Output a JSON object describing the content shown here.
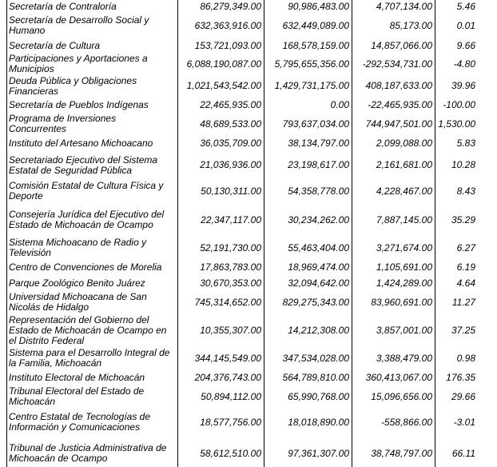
{
  "rows": [
    {
      "name": "Secretaría de Contraloría",
      "v1": "86,279,349.00",
      "v2": "90,986,483.00",
      "diff": "4,707,134.00",
      "pct": "5.46",
      "h": 16
    },
    {
      "name": "Secretaría de Desarrollo Social y Humano",
      "v1": "632,363,916.00",
      "v2": "632,449,089.00",
      "diff": "85,173.00",
      "pct": "0.01",
      "h": 32
    },
    {
      "name": "Secretaría de Cultura",
      "v1": "153,721,093.00",
      "v2": "168,578,159.00",
      "diff": "14,857,066.00",
      "pct": "9.66",
      "h": 18
    },
    {
      "name": "Participaciones y Aportaciones a Municipios",
      "v1": "6,088,190,087.00",
      "v2": "5,795,655,356.00",
      "diff": "-292,534,731.00",
      "pct": "-4.80",
      "h": 28
    },
    {
      "name": "Deuda Pública y Obligaciones Financieras",
      "v1": "1,021,543,542.00",
      "v2": "1,429,731,175.00",
      "diff": "408,187,633.00",
      "pct": "39.96",
      "h": 27
    },
    {
      "name": "Secretaría de Pueblos Indígenas",
      "v1": "22,465,935.00",
      "v2": "0.00",
      "diff": "-22,465,935.00",
      "pct": "-100.00",
      "h": 20
    },
    {
      "name": "Programa de Inversiones Concurrentes",
      "v1": "48,689,533.00",
      "v2": "793,637,034.00",
      "diff": "744,947,501.00",
      "pct": "1,530.00",
      "h": 28
    },
    {
      "name": "Instituto del Artesano Michoacano",
      "v1": "36,035,709.00",
      "v2": "38,134,797.00",
      "diff": "2,099,088.00",
      "pct": "5.83",
      "h": 20
    },
    {
      "name": "Secretariado Ejecutivo del Sistema Estatal de Seguridad Pública",
      "v1": "21,036,936.00",
      "v2": "23,198,617.00",
      "diff": "2,161,681.00",
      "pct": "10.28",
      "h": 35
    },
    {
      "name": "Comisión Estatal de Cultura Física y Deporte",
      "v1": "50,130,311.00",
      "v2": "54,358,778.00",
      "diff": "4,228,467.00",
      "pct": "8.43",
      "h": 30
    },
    {
      "name": "Consejería Jurídica del Ejecutivo del Estado de Michoacán de Ocampo",
      "v1": "22,347,117.00",
      "v2": "30,234,262.00",
      "diff": "7,887,145.00",
      "pct": "35.29",
      "h": 42
    },
    {
      "name": "Sistema Michoacano de Radio y Televisión",
      "v1": "52,191,730.00",
      "v2": "55,463,404.00",
      "diff": "3,271,674.00",
      "pct": "6.27",
      "h": 28
    },
    {
      "name": "Centro de Convenciones de Morelia",
      "v1": "17,863,783.00",
      "v2": "18,969,474.00",
      "diff": "1,105,691.00",
      "pct": "6.19",
      "h": 20
    },
    {
      "name": "Parque Zoológico Benito Juárez",
      "v1": "30,670,353.00",
      "v2": "32,094,642.00",
      "diff": "1,424,289.00",
      "pct": "4.64",
      "h": 20
    },
    {
      "name": "Universidad Michoacana de San Nicolás de Hidalgo",
      "v1": "745,314,652.00",
      "v2": "829,275,343.00",
      "diff": "83,960,691.00",
      "pct": "11.27",
      "h": 28
    },
    {
      "name": "Representación del Gobierno del Estado de Michoacán de Ocampo en el Distrito Federal",
      "v1": "10,355,307.00",
      "v2": "14,212,308.00",
      "diff": "3,857,001.00",
      "pct": "37.25",
      "h": 42
    },
    {
      "name": "Sistema para el Desarrollo Integral de la Familia, Michoacán",
      "v1": "344,145,549.00",
      "v2": "347,534,028.00",
      "diff": "3,388,479.00",
      "pct": "0.98",
      "h": 28
    },
    {
      "name": "Instituto Electoral de Michoacán",
      "v1": "204,376,743.00",
      "v2": "564,789,810.00",
      "diff": "360,413,067.00",
      "pct": "176.35",
      "h": 20
    },
    {
      "name": "Tribunal Electoral del Estado de Michoacán",
      "v1": "50,894,112.00",
      "v2": "65,990,768.00",
      "diff": "15,096,656.00",
      "pct": "29.66",
      "h": 28
    },
    {
      "name": "Centro Estatal de Tecnologías de Información y Comunicaciones",
      "v1": "18,577,756.00",
      "v2": "18,018,890.00",
      "diff": "-558,866.00",
      "pct": "-3.01",
      "h": 36
    },
    {
      "name": "Tribunal de Justicia Administrativa de Michoacán de Ocampo",
      "v1": "58,612,510.00",
      "v2": "97,361,307.00",
      "diff": "38,748,797.00",
      "pct": "66.11",
      "h": 42
    }
  ]
}
